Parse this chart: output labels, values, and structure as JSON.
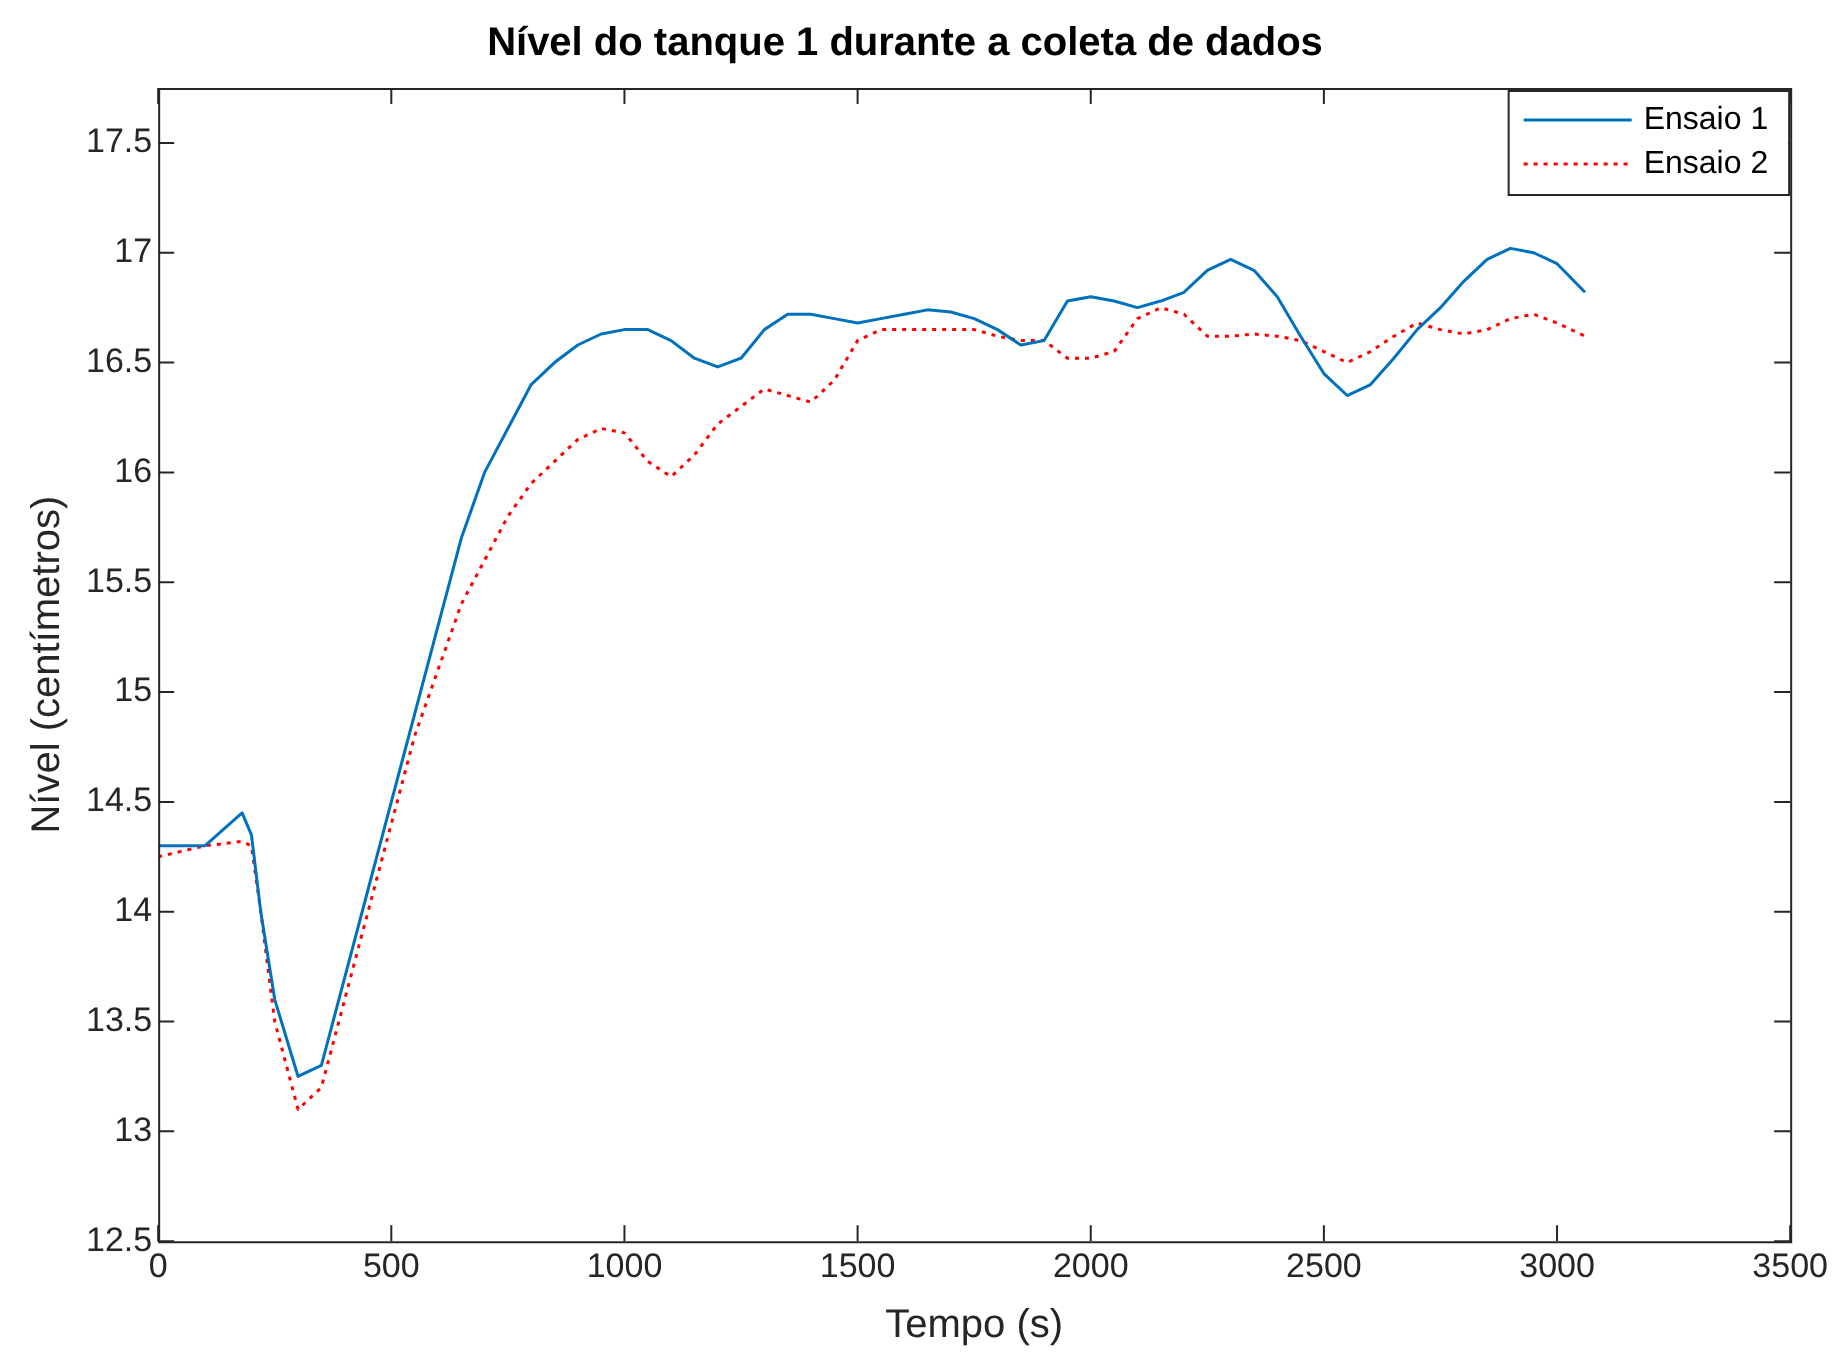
{
  "chart_data": {
    "type": "line",
    "title": "Nível do tanque 1 durante a coleta de dados",
    "xlabel": "Tempo (s)",
    "ylabel": "Nível (centímetros)",
    "x": [
      0,
      100,
      180,
      200,
      220,
      250,
      300,
      350,
      400,
      450,
      500,
      550,
      600,
      650,
      700,
      750,
      800,
      850,
      900,
      950,
      1000,
      1050,
      1100,
      1150,
      1200,
      1250,
      1300,
      1350,
      1400,
      1450,
      1500,
      1550,
      1600,
      1650,
      1700,
      1750,
      1800,
      1850,
      1900,
      1950,
      2000,
      2050,
      2100,
      2150,
      2200,
      2250,
      2300,
      2350,
      2400,
      2450,
      2500,
      2550,
      2600,
      2650,
      2700,
      2750,
      2800,
      2850,
      2900,
      2950,
      3000,
      3060
    ],
    "series": [
      {
        "name": "Ensaio 1",
        "color": "#0072bd",
        "line_style": "solid",
        "values": [
          14.3,
          14.3,
          14.45,
          14.35,
          14.0,
          13.6,
          13.25,
          13.3,
          13.7,
          14.1,
          14.5,
          14.9,
          15.3,
          15.7,
          16.0,
          16.2,
          16.4,
          16.5,
          16.58,
          16.63,
          16.65,
          16.65,
          16.6,
          16.52,
          16.48,
          16.52,
          16.65,
          16.72,
          16.72,
          16.7,
          16.68,
          16.7,
          16.72,
          16.74,
          16.73,
          16.7,
          16.65,
          16.58,
          16.6,
          16.78,
          16.8,
          16.78,
          16.75,
          16.78,
          16.82,
          16.92,
          16.97,
          16.92,
          16.8,
          16.62,
          16.45,
          16.35,
          16.4,
          16.52,
          16.65,
          16.75,
          16.87,
          16.97,
          17.02,
          17.0,
          16.95,
          16.82
        ]
      },
      {
        "name": "Ensaio 2",
        "color": "#ff0000",
        "line_style": "dotted",
        "values": [
          14.25,
          14.3,
          14.32,
          14.3,
          14.0,
          13.5,
          13.1,
          13.2,
          13.6,
          14.0,
          14.4,
          14.8,
          15.1,
          15.4,
          15.6,
          15.8,
          15.95,
          16.05,
          16.15,
          16.2,
          16.18,
          16.05,
          15.98,
          16.08,
          16.22,
          16.3,
          16.38,
          16.35,
          16.32,
          16.42,
          16.6,
          16.65,
          16.65,
          16.65,
          16.65,
          16.65,
          16.62,
          16.6,
          16.6,
          16.52,
          16.52,
          16.55,
          16.7,
          16.75,
          16.72,
          16.62,
          16.62,
          16.63,
          16.62,
          16.6,
          16.55,
          16.5,
          16.55,
          16.62,
          16.68,
          16.65,
          16.63,
          16.65,
          16.7,
          16.72,
          16.68,
          16.62
        ]
      }
    ],
    "xlim": [
      0,
      3500
    ],
    "xticks": [
      0,
      500,
      1000,
      1500,
      2000,
      2500,
      3000,
      3500
    ],
    "ylim": [
      12.5,
      17.75
    ],
    "yticks": [
      12.5,
      13,
      13.5,
      14,
      14.5,
      15,
      15.5,
      16,
      16.5,
      17,
      17.5
    ],
    "grid": false,
    "legend": "top right"
  }
}
